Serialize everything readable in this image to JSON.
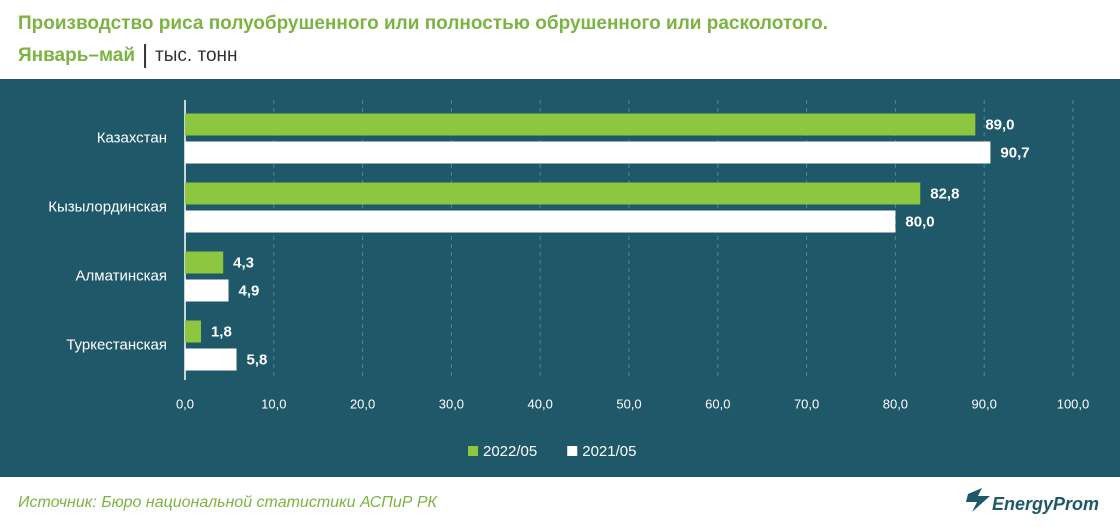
{
  "chart_data": {
    "type": "hbar",
    "title": "Производство риса полуобрушенного или полностью обрушенного или расколотого.",
    "subtitle": "Январь–май",
    "units": "тыс. тонн",
    "categories": [
      "Казахстан",
      "Кызылординская",
      "Алматинская",
      "Туркестанская"
    ],
    "series": [
      {
        "name": "2022/05",
        "color": "#8dc63f",
        "values": [
          89.0,
          82.8,
          4.3,
          1.8
        ],
        "value_labels": [
          "89,0",
          "82,8",
          "4,3",
          "1,8"
        ]
      },
      {
        "name": "2021/05",
        "color": "#ffffff",
        "values": [
          90.7,
          80.0,
          4.9,
          5.8
        ],
        "value_labels": [
          "90,7",
          "80,0",
          "4,9",
          "5,8"
        ]
      }
    ],
    "xlim": [
      0,
      100
    ],
    "xticks": [
      {
        "value": 0,
        "label": "0,0"
      },
      {
        "value": 10,
        "label": "10,0"
      },
      {
        "value": 20,
        "label": "20,0"
      },
      {
        "value": 30,
        "label": "30,0"
      },
      {
        "value": 40,
        "label": "40,0"
      },
      {
        "value": 50,
        "label": "50,0"
      },
      {
        "value": 60,
        "label": "60,0"
      },
      {
        "value": 70,
        "label": "70,0"
      },
      {
        "value": 80,
        "label": "80,0"
      },
      {
        "value": 90,
        "label": "90,0"
      },
      {
        "value": 100,
        "label": "100,0"
      }
    ],
    "grid": true,
    "legend": "bottom"
  },
  "source": "Источник: Бюро национальной статистики АСПиР РК",
  "logo": "EnergyProm"
}
